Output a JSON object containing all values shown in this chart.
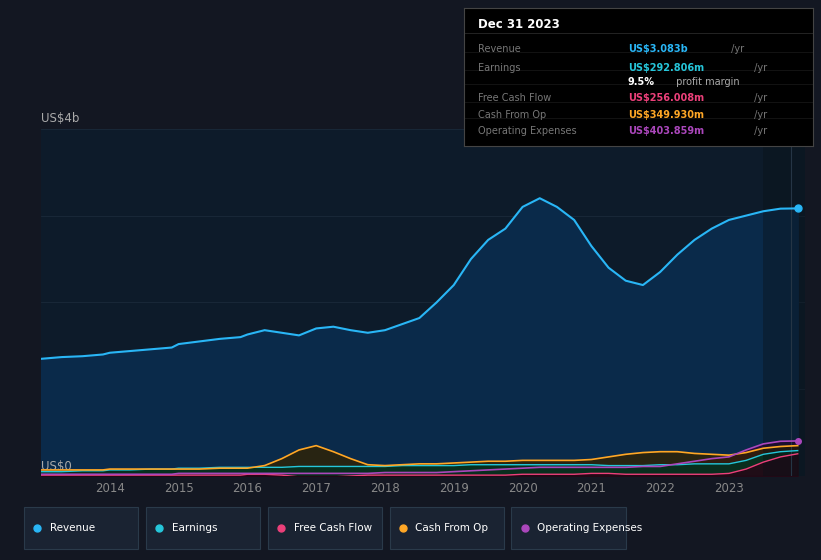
{
  "background_color": "#131722",
  "plot_bg_color": "#0d1b2a",
  "years": [
    2013.0,
    2013.3,
    2013.6,
    2013.9,
    2014.0,
    2014.3,
    2014.6,
    2014.9,
    2015.0,
    2015.3,
    2015.6,
    2015.9,
    2016.0,
    2016.25,
    2016.5,
    2016.75,
    2017.0,
    2017.25,
    2017.5,
    2017.75,
    2018.0,
    2018.25,
    2018.5,
    2018.75,
    2019.0,
    2019.25,
    2019.5,
    2019.75,
    2020.0,
    2020.25,
    2020.5,
    2020.75,
    2021.0,
    2021.25,
    2021.5,
    2021.75,
    2022.0,
    2022.25,
    2022.5,
    2022.75,
    2023.0,
    2023.25,
    2023.5,
    2023.75,
    2024.0
  ],
  "revenue": [
    1.35,
    1.37,
    1.38,
    1.4,
    1.42,
    1.44,
    1.46,
    1.48,
    1.52,
    1.55,
    1.58,
    1.6,
    1.63,
    1.68,
    1.65,
    1.62,
    1.7,
    1.72,
    1.68,
    1.65,
    1.68,
    1.75,
    1.82,
    2.0,
    2.2,
    2.5,
    2.72,
    2.85,
    3.1,
    3.2,
    3.1,
    2.95,
    2.65,
    2.4,
    2.25,
    2.2,
    2.35,
    2.55,
    2.72,
    2.85,
    2.95,
    3.0,
    3.05,
    3.08,
    3.083
  ],
  "earnings": [
    0.05,
    0.05,
    0.06,
    0.06,
    0.07,
    0.07,
    0.08,
    0.08,
    0.09,
    0.09,
    0.1,
    0.1,
    0.1,
    0.1,
    0.1,
    0.11,
    0.11,
    0.11,
    0.11,
    0.11,
    0.11,
    0.12,
    0.12,
    0.12,
    0.12,
    0.13,
    0.13,
    0.13,
    0.13,
    0.13,
    0.13,
    0.13,
    0.13,
    0.12,
    0.12,
    0.12,
    0.13,
    0.13,
    0.14,
    0.14,
    0.14,
    0.18,
    0.25,
    0.28,
    0.293
  ],
  "free_cash_flow": [
    0.01,
    0.01,
    0.01,
    0.01,
    0.01,
    0.01,
    0.01,
    0.01,
    0.01,
    0.01,
    0.01,
    0.01,
    0.02,
    0.02,
    0.01,
    -0.01,
    -0.02,
    -0.01,
    0.0,
    0.01,
    0.01,
    0.01,
    0.01,
    0.01,
    0.01,
    0.01,
    0.01,
    0.01,
    0.02,
    0.02,
    0.02,
    0.02,
    0.03,
    0.03,
    0.02,
    0.02,
    0.02,
    0.02,
    0.02,
    0.02,
    0.03,
    0.08,
    0.16,
    0.22,
    0.256
  ],
  "cash_from_op": [
    0.07,
    0.07,
    0.07,
    0.07,
    0.08,
    0.08,
    0.08,
    0.08,
    0.08,
    0.08,
    0.09,
    0.09,
    0.09,
    0.12,
    0.2,
    0.3,
    0.35,
    0.28,
    0.2,
    0.13,
    0.12,
    0.13,
    0.14,
    0.14,
    0.15,
    0.16,
    0.17,
    0.17,
    0.18,
    0.18,
    0.18,
    0.18,
    0.19,
    0.22,
    0.25,
    0.27,
    0.28,
    0.28,
    0.26,
    0.25,
    0.24,
    0.27,
    0.32,
    0.34,
    0.35
  ],
  "operating_expenses": [
    0.02,
    0.02,
    0.02,
    0.02,
    0.02,
    0.02,
    0.02,
    0.02,
    0.03,
    0.03,
    0.03,
    0.03,
    0.03,
    0.03,
    0.03,
    0.03,
    0.03,
    0.03,
    0.03,
    0.03,
    0.04,
    0.04,
    0.04,
    0.04,
    0.05,
    0.06,
    0.07,
    0.08,
    0.09,
    0.1,
    0.1,
    0.1,
    0.1,
    0.1,
    0.1,
    0.11,
    0.11,
    0.14,
    0.17,
    0.2,
    0.22,
    0.3,
    0.37,
    0.4,
    0.404
  ],
  "revenue_color": "#29b6f6",
  "earnings_color": "#26c6da",
  "free_cash_flow_color": "#ec407a",
  "cash_from_op_color": "#ffa726",
  "operating_expenses_color": "#ab47bc",
  "ylim_max": 4.0,
  "xlim_start": 2013.0,
  "xlim_end": 2024.1,
  "xticks": [
    2014,
    2015,
    2016,
    2017,
    2018,
    2019,
    2020,
    2021,
    2022,
    2023
  ],
  "grid_color": "#1e2d3d",
  "ylabel_top": "US$4b",
  "ylabel_zero": "US$0",
  "tooltip_date": "Dec 31 2023",
  "legend_items": [
    {
      "label": "Revenue",
      "color": "#29b6f6"
    },
    {
      "label": "Earnings",
      "color": "#26c6da"
    },
    {
      "label": "Free Cash Flow",
      "color": "#ec407a"
    },
    {
      "label": "Cash From Op",
      "color": "#ffa726"
    },
    {
      "label": "Operating Expenses",
      "color": "#ab47bc"
    }
  ]
}
